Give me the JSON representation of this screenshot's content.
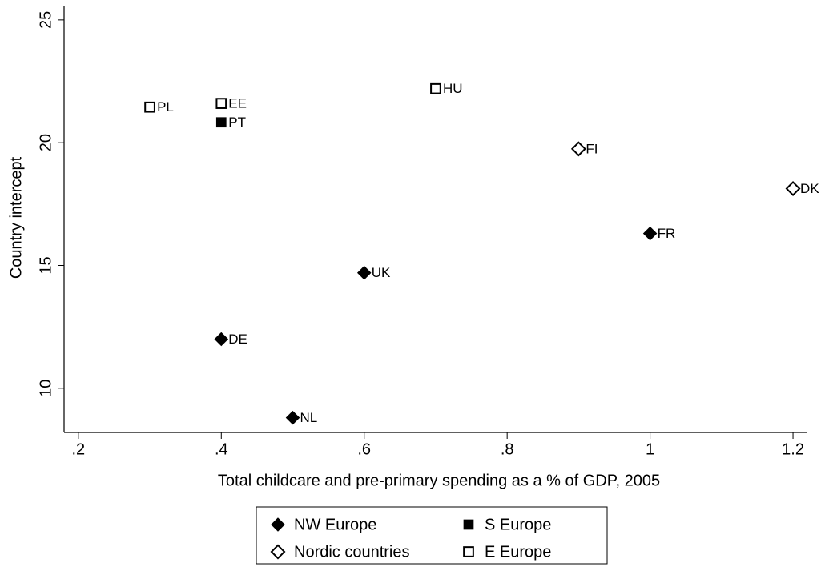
{
  "chart_data": {
    "type": "scatter",
    "xlabel": "Total childcare and pre-primary spending as a % of GDP, 2005",
    "ylabel": "Country intercept",
    "xlim": [
      0.18,
      1.219
    ],
    "ylim": [
      8.2,
      25.55
    ],
    "xticks": [
      {
        "value": 0.2,
        "label": ".2"
      },
      {
        "value": 0.4,
        "label": ".4"
      },
      {
        "value": 0.6,
        "label": ".6"
      },
      {
        "value": 0.8,
        "label": ".8"
      },
      1,
      1.2
    ],
    "yticks": [
      10,
      15,
      20,
      25
    ],
    "series": [
      {
        "name": "NW Europe",
        "marker": "diamond",
        "filled": true,
        "color": "#000000",
        "x": [
          1.0,
          0.6,
          0.4,
          0.5
        ],
        "values": [
          16.3,
          14.7,
          12.0,
          8.8
        ],
        "labels": [
          "FR",
          "UK",
          "DE",
          "NL"
        ]
      },
      {
        "name": "S Europe",
        "marker": "square",
        "filled": true,
        "color": "#000000",
        "x": [
          0.4
        ],
        "values": [
          20.83
        ],
        "labels": [
          "PT"
        ]
      },
      {
        "name": "Nordic countries",
        "marker": "diamond",
        "filled": false,
        "color": "#000000",
        "x": [
          0.9,
          1.2
        ],
        "values": [
          19.75,
          18.13
        ],
        "labels": [
          "FI",
          "DK"
        ]
      },
      {
        "name": "E Europe",
        "marker": "square",
        "filled": false,
        "color": "#000000",
        "x": [
          0.3,
          0.4,
          0.7
        ],
        "values": [
          21.45,
          21.6,
          22.2
        ],
        "labels": [
          "PL",
          "EE",
          "HU"
        ]
      }
    ],
    "legend": "bottom"
  }
}
